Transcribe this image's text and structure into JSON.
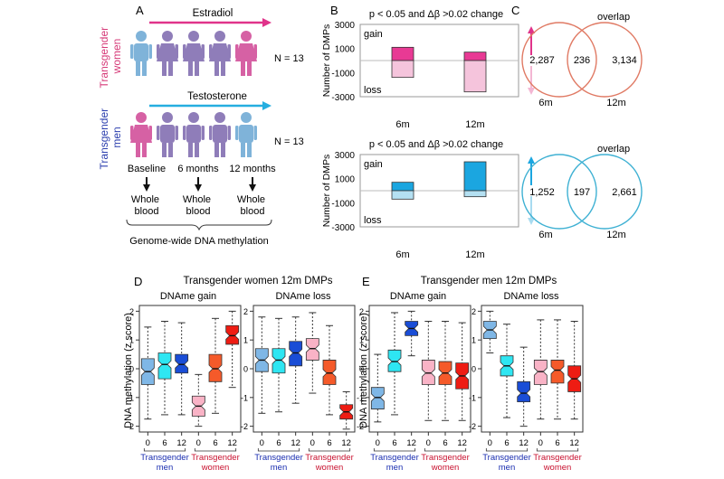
{
  "panel_letters": [
    "A",
    "B",
    "C",
    "D",
    "E"
  ],
  "panel_a": {
    "hormone_top": "Estradiol",
    "hormone_bottom": "Testosterone",
    "group_top": "Transgender women",
    "group_top_lines": [
      "Transgender",
      "women"
    ],
    "group_bottom": "Transgender men",
    "group_bottom_lines": [
      "Transgender",
      "men"
    ],
    "n_top": "N = 13",
    "n_bottom": "N = 13",
    "timepoints": [
      "Baseline",
      "6 months",
      "12 months"
    ],
    "sample_lines": [
      "Whole",
      "blood"
    ],
    "footer": "Genome-wide DNA methylation",
    "colors": {
      "pink": "#e0338a",
      "cyan": "#25aee0",
      "blue_person": "#7fb3d9",
      "purple_person": "#8f7db9",
      "pink_person": "#d661a4"
    }
  },
  "panel_b": {
    "title": "p < 0.05 and Δβ >0.02 change",
    "titles": [
      "p < 0.05 and Δβ >0.02 change",
      "p < 0.05 and Δβ >0.02 change"
    ],
    "ylabel": "Number of DMPs",
    "gain_label": "gain",
    "loss_label": "loss",
    "tick_labels": [
      "3000",
      "1000",
      "-1000",
      "-3000"
    ]
  },
  "panel_c": {
    "label": "overlap",
    "venn_top": {
      "left": "2,287",
      "center": "236",
      "right": "3,134",
      "left_label": "6m",
      "right_label": "12m",
      "color": "#e07a64"
    },
    "venn_bottom": {
      "left": "1,252",
      "center": "197",
      "right": "2,661",
      "left_label": "6m",
      "right_label": "12m",
      "color": "#3fb1d3"
    }
  },
  "panel_d": {
    "title": "Transgender women 12m DMPs",
    "sub": [
      "DNAme gain",
      "DNAme loss"
    ],
    "ylabel": "DNA methylation (z score)",
    "group_men": [
      "Transgender",
      "men"
    ],
    "group_women": [
      "Transgender",
      "women"
    ]
  },
  "panel_e": {
    "title": "Transgender men 12m DMPs",
    "sub": [
      "DNAme gain",
      "DNAme loss"
    ],
    "ylabel": "DNA methylation (z score)",
    "group_men": [
      "Transgender",
      "men"
    ],
    "group_women": [
      "Transgender",
      "women"
    ]
  },
  "boxplot_xticks": [
    "0",
    "6",
    "12",
    "0",
    "6",
    "12"
  ],
  "boxplot_yticks": [
    "2",
    "1",
    "0",
    "-1",
    "-2"
  ],
  "chart_data": [
    {
      "type": "bar",
      "panel": "B-top",
      "title": "p < 0.05 and Δβ >0.02 change",
      "categories": [
        "6m",
        "12m"
      ],
      "ylabel": "Number of DMPs",
      "ylim": [
        -3000,
        3000
      ],
      "yticks": [
        3000,
        1000,
        -1000,
        -3000
      ],
      "series": [
        {
          "name": "gain",
          "values": [
            1100,
            700
          ],
          "color": "#e83a94"
        },
        {
          "name": "loss",
          "values": [
            -1400,
            -2600
          ],
          "color": "#f5c4dc"
        }
      ]
    },
    {
      "type": "bar",
      "panel": "B-bottom",
      "title": "p < 0.05 and Δβ >0.02 change",
      "categories": [
        "6m",
        "12m"
      ],
      "ylabel": "Number of DMPs",
      "ylim": [
        -3000,
        3000
      ],
      "yticks": [
        3000,
        1000,
        -1000,
        -3000
      ],
      "series": [
        {
          "name": "gain",
          "values": [
            700,
            2400
          ],
          "color": "#1ba6e0"
        },
        {
          "name": "loss",
          "values": [
            -700,
            -500
          ],
          "color": "#b4e0f2"
        }
      ]
    },
    {
      "type": "box",
      "panel": "D-gain",
      "title": "DNAme gain",
      "categories": [
        "0",
        "6",
        "12",
        "0",
        "6",
        "12"
      ],
      "ylim": [
        -2,
        2
      ],
      "medians": [
        -0.1,
        0.15,
        0.15,
        -1.3,
        0.0,
        1.15
      ],
      "q1": [
        -0.55,
        -0.35,
        -0.15,
        -1.65,
        -0.45,
        0.85
      ],
      "q3": [
        0.35,
        0.55,
        0.5,
        -0.95,
        0.5,
        1.5
      ],
      "whisker_low": [
        -1.75,
        -1.6,
        -1.6,
        -2.0,
        -1.55,
        -0.65
      ],
      "whisker_high": [
        1.45,
        1.65,
        1.6,
        -0.2,
        1.75,
        2.0
      ],
      "colors": [
        "#7fb7e6",
        "#2ee6f2",
        "#1a4dd6",
        "#f9b3c6",
        "#f55a2a",
        "#ee1c13"
      ]
    },
    {
      "type": "box",
      "panel": "D-loss",
      "title": "DNAme loss",
      "categories": [
        "0",
        "6",
        "12",
        "0",
        "6",
        "12"
      ],
      "ylim": [
        -2,
        2
      ],
      "medians": [
        0.3,
        0.3,
        0.55,
        0.7,
        -0.15,
        -1.5
      ],
      "q1": [
        -0.1,
        -0.15,
        0.1,
        0.3,
        -0.55,
        -1.75
      ],
      "q3": [
        0.7,
        0.7,
        0.95,
        1.05,
        0.3,
        -1.25
      ],
      "whisker_low": [
        -1.55,
        -1.5,
        -1.2,
        -0.85,
        -1.6,
        -2.1
      ],
      "whisker_high": [
        1.8,
        1.75,
        1.8,
        1.95,
        1.5,
        -0.8
      ],
      "colors": [
        "#7fb7e6",
        "#2ee6f2",
        "#1a4dd6",
        "#f9b3c6",
        "#f55a2a",
        "#ee1c13"
      ]
    },
    {
      "type": "box",
      "panel": "E-gain",
      "title": "DNAme gain",
      "categories": [
        "0",
        "6",
        "12",
        "0",
        "6",
        "12"
      ],
      "ylim": [
        -2,
        2
      ],
      "medians": [
        -1.0,
        0.25,
        1.4,
        -0.15,
        -0.15,
        -0.25
      ],
      "q1": [
        -1.4,
        -0.1,
        1.15,
        -0.55,
        -0.55,
        -0.7
      ],
      "q3": [
        -0.65,
        0.65,
        1.65,
        0.3,
        0.25,
        0.2
      ],
      "whisker_low": [
        -1.85,
        -1.6,
        0.45,
        -1.8,
        -1.8,
        -1.8
      ],
      "whisker_high": [
        0.5,
        1.95,
        2.0,
        1.65,
        1.65,
        1.6
      ],
      "colors": [
        "#7fb7e6",
        "#2ee6f2",
        "#1a4dd6",
        "#f9b3c6",
        "#f55a2a",
        "#ee1c13"
      ]
    },
    {
      "type": "box",
      "panel": "E-loss",
      "title": "DNAme loss",
      "categories": [
        "0",
        "6",
        "12",
        "0",
        "6",
        "12"
      ],
      "ylim": [
        -2,
        2
      ],
      "medians": [
        1.35,
        0.1,
        -0.85,
        -0.1,
        -0.05,
        -0.35
      ],
      "q1": [
        1.05,
        -0.25,
        -1.15,
        -0.55,
        -0.5,
        -0.8
      ],
      "q3": [
        1.65,
        0.45,
        -0.45,
        0.3,
        0.3,
        0.1
      ],
      "whisker_low": [
        0.55,
        -1.7,
        -2.0,
        -1.75,
        -1.75,
        -1.75
      ],
      "whisker_high": [
        2.0,
        1.55,
        0.75,
        1.7,
        1.7,
        1.65
      ],
      "colors": [
        "#7fb7e6",
        "#2ee6f2",
        "#1a4dd6",
        "#f9b3c6",
        "#f55a2a",
        "#ee1c13"
      ]
    }
  ]
}
